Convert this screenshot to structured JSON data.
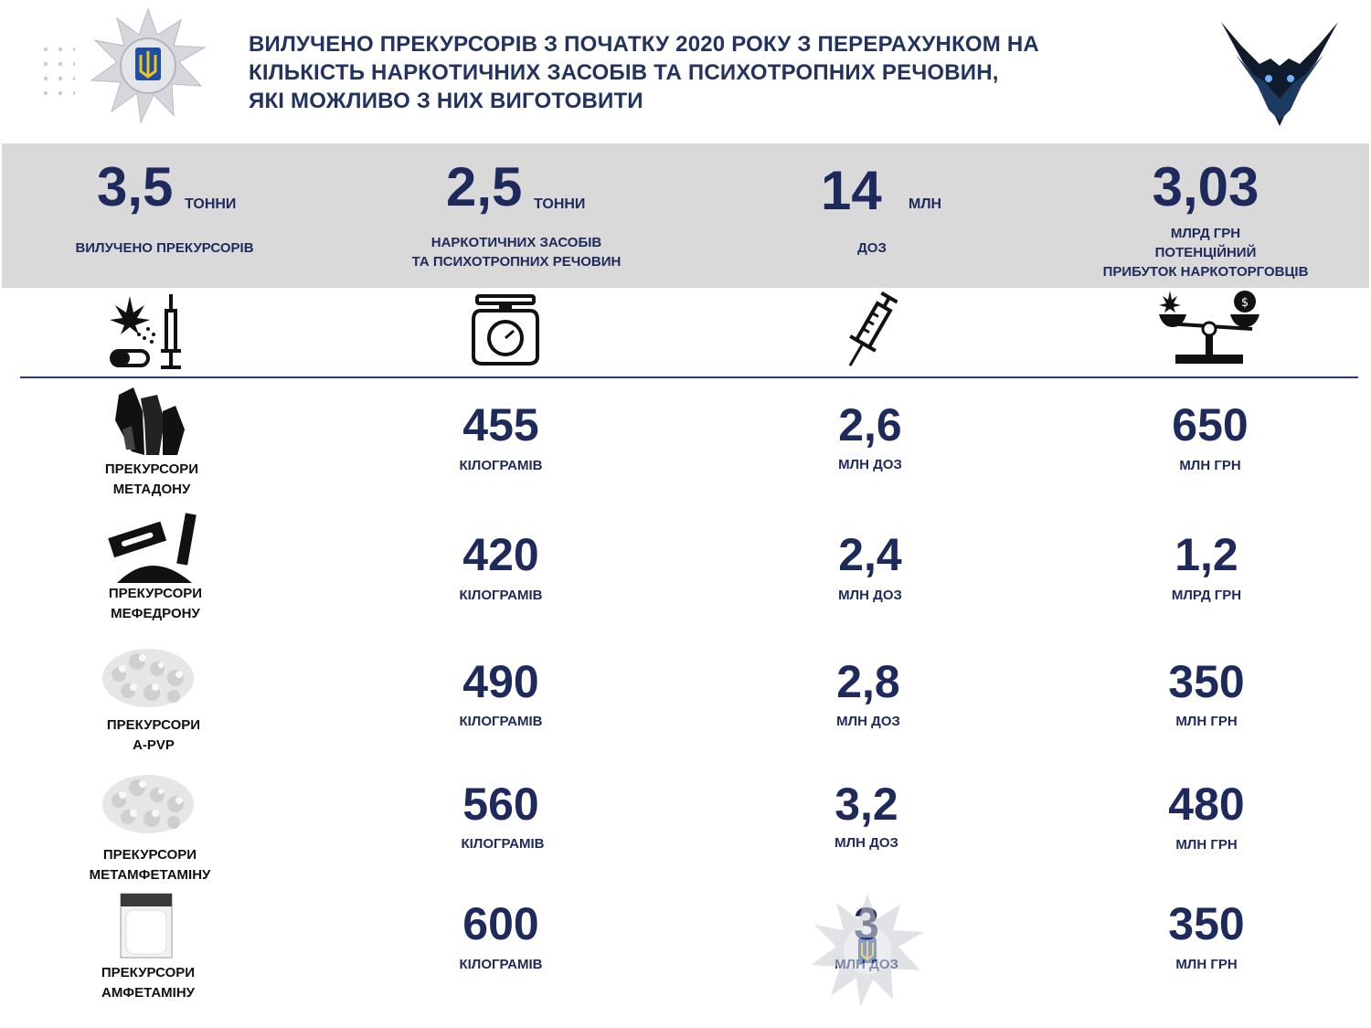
{
  "header": {
    "title_lines": [
      "ВИЛУЧЕНО ПРЕКУРСОРІВ З ПОЧАТКУ 2020 РОКУ З ПЕРЕРАХУНКОМ НА",
      "КІЛЬКІСТЬ НАРКОТИЧНИХ ЗАСОБІВ ТА ПСИХОТРОПНИХ РЕЧОВИН,",
      "ЯКІ МОЖЛИВО З НИХ ВИГОТОВИТИ"
    ]
  },
  "summary": [
    {
      "value": "3,5",
      "unit": "ТОННИ",
      "label": "ВИЛУЧЕНО ПРЕКУРСОРІВ"
    },
    {
      "value": "2,5",
      "unit": "ТОННИ",
      "label_lines": [
        "НАРКОТИЧНИХ ЗАСОБІВ",
        "ТА ПСИХОТРОПНИХ РЕЧОВИН"
      ]
    },
    {
      "value": "14",
      "unit": "МЛН",
      "label": "ДОЗ"
    },
    {
      "value": "3,03",
      "label_lines": [
        "МЛРД ГРН",
        "ПОТЕНЦІЙНИЙ",
        "ПРИБУТОК НАРКОТОРГОВЦІВ"
      ]
    }
  ],
  "rows": [
    {
      "label_lines": [
        "ПРЕКУРСОРИ",
        "МЕТАДОНУ"
      ],
      "weight": "455",
      "weight_unit": "КІЛОГРАМІВ",
      "doses": "2,6",
      "doses_unit": "МЛН ДОЗ",
      "profit": "650",
      "profit_unit": "МЛН ГРН"
    },
    {
      "label_lines": [
        "ПРЕКУРСОРИ",
        "МЕФЕДРОНУ"
      ],
      "weight": "420",
      "weight_unit": "КІЛОГРАМІВ",
      "doses": "2,4",
      "doses_unit": "МЛН ДОЗ",
      "profit": "1,2",
      "profit_unit": "МЛРД ГРН"
    },
    {
      "label_lines": [
        "ПРЕКУРСОРИ",
        "A-PVP"
      ],
      "weight": "490",
      "weight_unit": "КІЛОГРАМІВ",
      "doses": "2,8",
      "doses_unit": "МЛН ДОЗ",
      "profit": "350",
      "profit_unit": "МЛН ГРН"
    },
    {
      "label_lines": [
        "ПРЕКУРСОРИ",
        "МЕТАМФЕТАМІНУ"
      ],
      "weight": "560",
      "weight_unit": "КІЛОГРАМІВ",
      "doses": "3,2",
      "doses_unit": "МЛН ДОЗ",
      "profit": "480",
      "profit_unit": "МЛН ГРН"
    },
    {
      "label_lines": [
        "ПРЕКУРСОРИ",
        "АМФЕТАМІНУ"
      ],
      "weight": "600",
      "weight_unit": "КІЛОГРАМІВ",
      "doses": "3",
      "doses_unit": "МЛН ДОЗ",
      "profit": "350",
      "profit_unit": "МЛН ГРН"
    }
  ],
  "icons": [
    "police-star-emblem",
    "owl-logo",
    "drugs-mix-icon",
    "kitchen-scale-icon",
    "syringe-icon",
    "balance-scale-icon",
    "crystals-icon",
    "razor-powder-icon",
    "white-crystals-icon",
    "white-crystals-icon",
    "powder-bag-icon"
  ],
  "colors": {
    "primary": "#1f2a5c",
    "band": "#d9d9d9"
  }
}
